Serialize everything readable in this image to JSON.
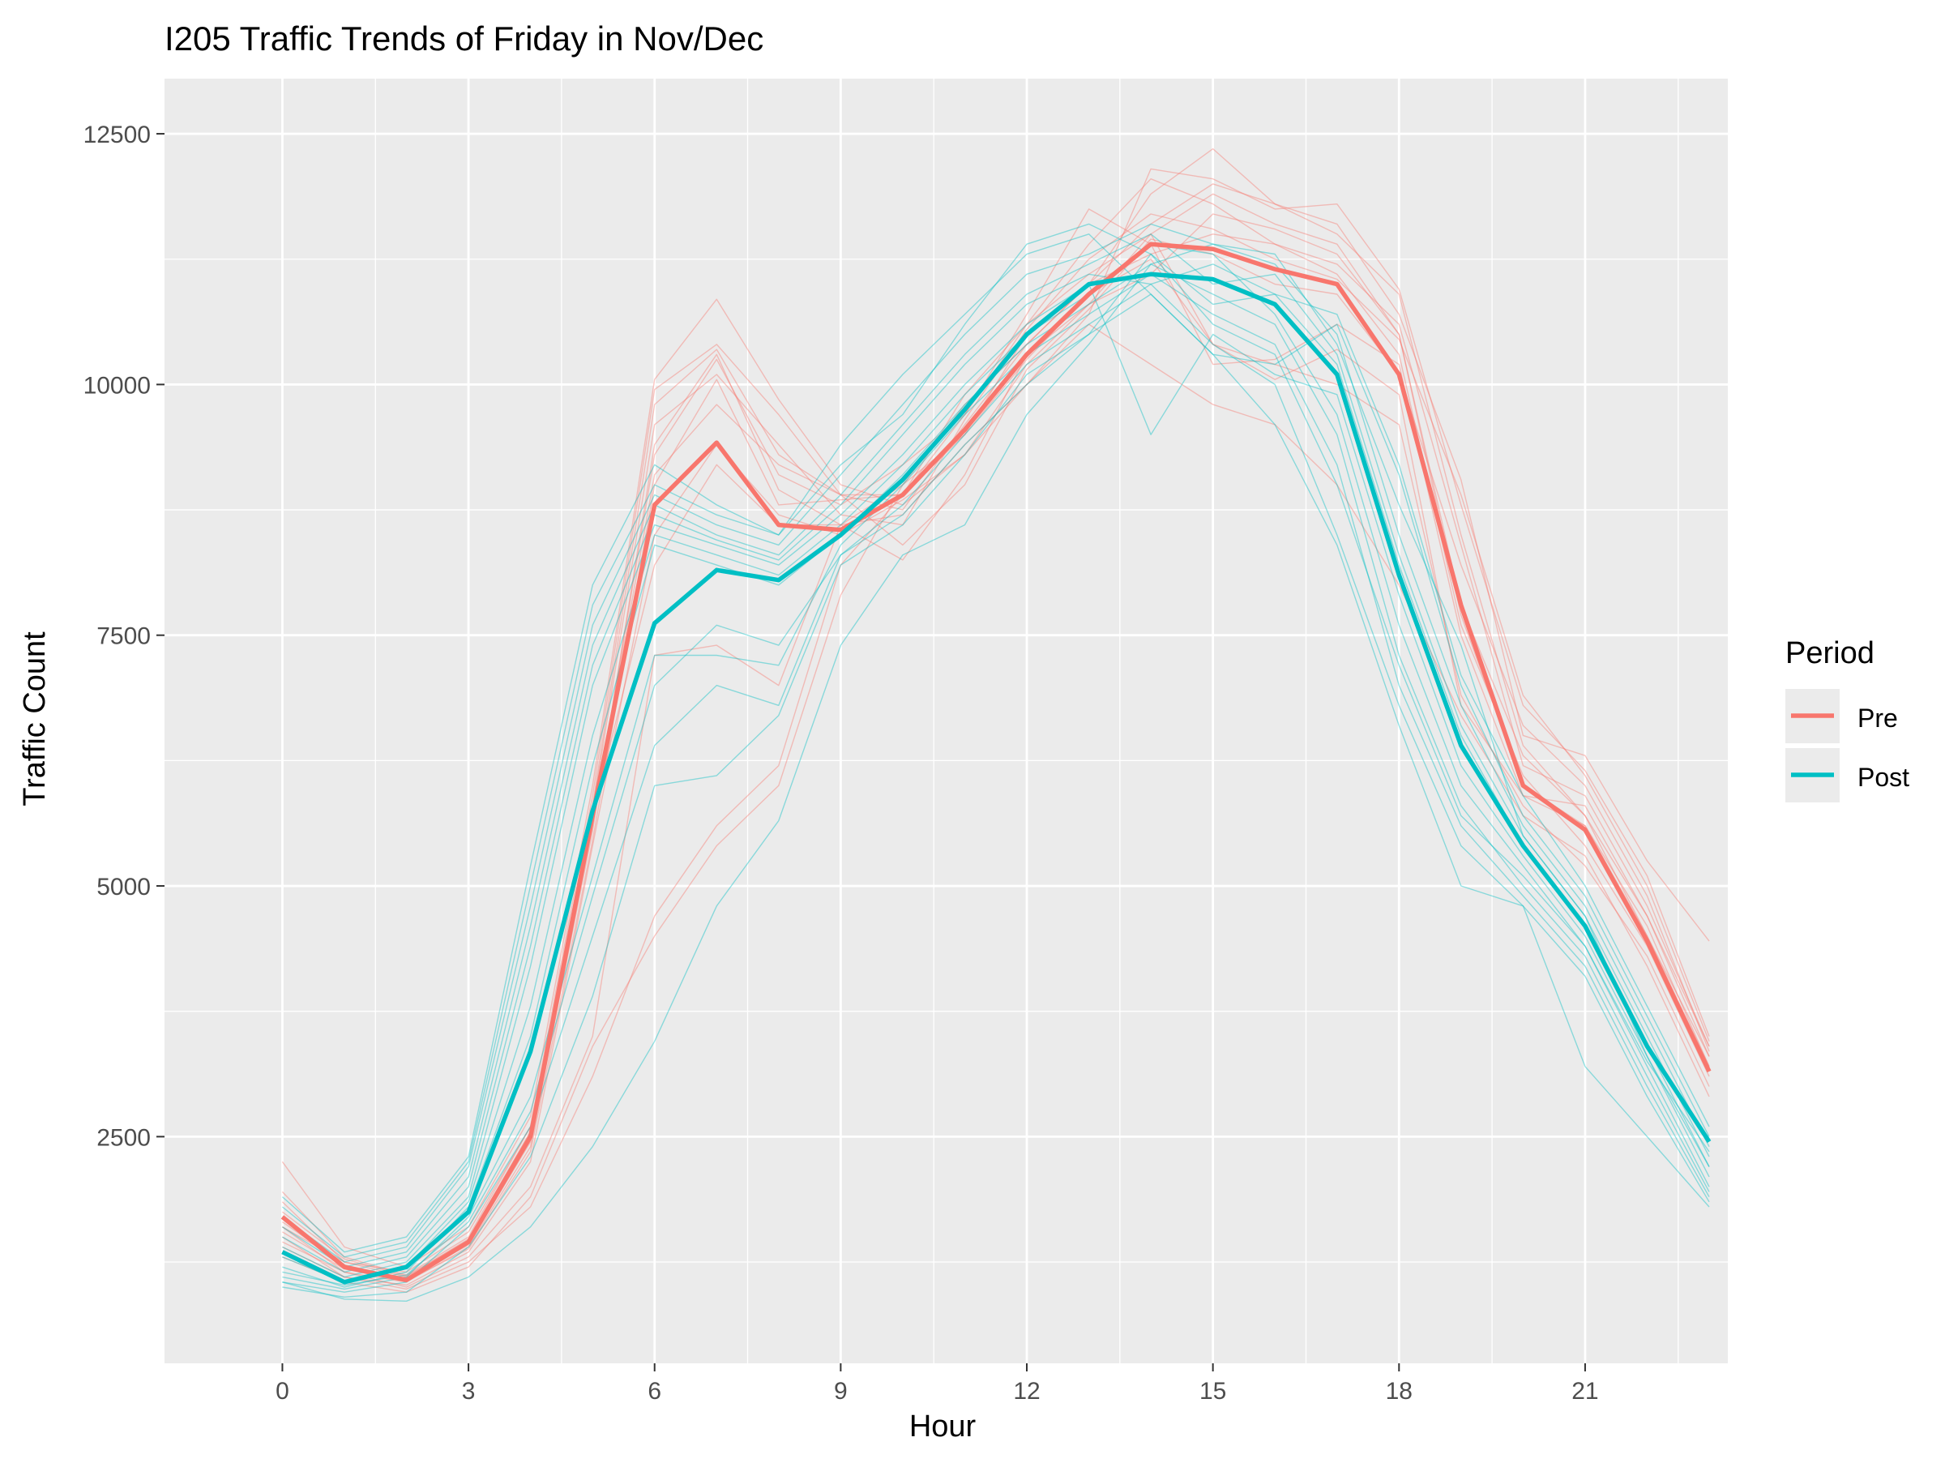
{
  "chart_data": {
    "type": "line",
    "title": "I205 Traffic Trends of Friday in Nov/Dec",
    "xlabel": "Hour",
    "ylabel": "Traffic Count",
    "xlim": [
      -1.9,
      23.3
    ],
    "ylim": [
      240,
      13050
    ],
    "x_ticks": [
      0,
      3,
      6,
      9,
      12,
      15,
      18,
      21
    ],
    "x_tick_labels": [
      "0",
      "3",
      "6",
      "9",
      "12",
      "15",
      "18",
      "21"
    ],
    "x_minor_ticks": [
      1.5,
      4.5,
      7.5,
      10.5,
      13.5,
      16.5,
      19.5,
      22.5
    ],
    "y_ticks": [
      2500,
      5000,
      7500,
      10000,
      12500
    ],
    "y_tick_labels": [
      "2500",
      "5000",
      "7500",
      "10000",
      "12500"
    ],
    "y_minor_ticks": [
      1250,
      3750,
      6250,
      8750,
      11250
    ],
    "grid": true,
    "legend": {
      "title": "Period",
      "position": "right",
      "entries": [
        {
          "label": "Pre",
          "color": "#F8766D"
        },
        {
          "label": "Post",
          "color": "#00BFC4"
        }
      ]
    },
    "colors": {
      "panel_background": "#EBEBEB",
      "grid": "#FFFFFF",
      "Pre": "#F8766D",
      "Post": "#00BFC4",
      "text": "#000000",
      "axis_text": "#4D4D4D"
    },
    "hours": [
      0,
      1,
      2,
      3,
      4,
      5,
      6,
      7,
      8,
      9,
      10,
      11,
      12,
      13,
      14,
      15,
      16,
      17,
      18,
      19,
      20,
      21,
      22,
      23
    ],
    "series": [
      {
        "name": "Pre",
        "values": [
          1700,
          1200,
          1070,
          1450,
          2500,
          5700,
          8800,
          9420,
          8600,
          8550,
          8900,
          9550,
          10300,
          10900,
          11400,
          11350,
          11150,
          11000,
          10100,
          7800,
          6000,
          5560,
          4450,
          3150
        ]
      },
      {
        "name": "Post",
        "values": [
          1350,
          1050,
          1200,
          1750,
          3350,
          5750,
          7620,
          8150,
          8050,
          8500,
          9050,
          9750,
          10500,
          11000,
          11100,
          11050,
          10800,
          10100,
          8100,
          6400,
          5400,
          4600,
          3400,
          2450
        ]
      }
    ],
    "individual_days": {
      "Pre": [
        [
          2250,
          1400,
          1200,
          1600,
          2700,
          6000,
          10050,
          10850,
          9850,
          9000,
          8800,
          9300,
          10000,
          10700,
          12150,
          12050,
          11750,
          11800,
          10950,
          8800,
          6800,
          6150,
          5100,
          3500
        ],
        [
          1950,
          1300,
          1120,
          1500,
          2600,
          5900,
          9950,
          10400,
          9700,
          8900,
          8750,
          9600,
          10400,
          11000,
          11900,
          12350,
          11800,
          11600,
          10700,
          9050,
          6500,
          6300,
          5250,
          4450
        ],
        [
          1850,
          1250,
          1100,
          1480,
          2550,
          5800,
          9800,
          10350,
          9300,
          8900,
          8900,
          9700,
          10600,
          11400,
          12050,
          11800,
          11400,
          11200,
          10600,
          8400,
          6200,
          5900,
          4800,
          3400
        ],
        [
          1600,
          1150,
          1050,
          1400,
          2400,
          5600,
          9300,
          10250,
          9100,
          8800,
          9200,
          9700,
          10700,
          11750,
          11400,
          10200,
          10250,
          10600,
          10200,
          7500,
          5900,
          5800,
          4700,
          3300
        ],
        [
          1700,
          1200,
          1090,
          1420,
          2450,
          5550,
          9400,
          10300,
          8950,
          8600,
          9000,
          9500,
          10250,
          10900,
          11250,
          10400,
          10050,
          10350,
          9900,
          6800,
          5900,
          5600,
          4600,
          3200
        ],
        [
          1550,
          1180,
          1060,
          1380,
          2350,
          5450,
          9000,
          10050,
          8800,
          8850,
          8900,
          9500,
          10500,
          11000,
          11300,
          11500,
          11400,
          11100,
          10300,
          7600,
          6100,
          5400,
          4400,
          3100
        ],
        [
          1500,
          1100,
          1020,
          1350,
          2250,
          5400,
          8500,
          9400,
          8700,
          8500,
          8850,
          9300,
          10200,
          10800,
          11500,
          10400,
          10200,
          10000,
          9600,
          6900,
          5800,
          5200,
          4300,
          3000
        ],
        [
          1650,
          1220,
          1080,
          1460,
          2500,
          5700,
          8200,
          9200,
          8600,
          8600,
          8700,
          9400,
          10000,
          10600,
          10200,
          9800,
          9600,
          9000,
          8000,
          6700,
          5700,
          5300,
          4200,
          2900
        ],
        [
          1450,
          1150,
          1000,
          1300,
          2000,
          3500,
          7300,
          7400,
          7000,
          8600,
          8250,
          9100,
          10300,
          10800,
          11100,
          11700,
          11550,
          11300,
          10500,
          7800,
          6300,
          5700,
          4500,
          3200
        ],
        [
          1400,
          1100,
          980,
          1250,
          1800,
          3100,
          4700,
          5600,
          6200,
          8200,
          8900,
          9900,
          10600,
          11100,
          11500,
          11900,
          11600,
          11400,
          10500,
          7700,
          6000,
          5600,
          4500,
          3300
        ],
        [
          1300,
          1050,
          950,
          1200,
          1900,
          3400,
          4500,
          5400,
          6000,
          7900,
          9000,
          9800,
          10400,
          11000,
          11600,
          12000,
          11800,
          11500,
          10900,
          8500,
          6400,
          5700,
          4700,
          3400
        ],
        [
          1600,
          1250,
          1150,
          1550,
          2600,
          5650,
          9100,
          9800,
          9200,
          8900,
          8400,
          9000,
          10150,
          10750,
          11450,
          11300,
          11000,
          10900,
          10100,
          8200,
          6600,
          6000,
          4900,
          3350
        ],
        [
          1750,
          1280,
          1110,
          1470,
          2550,
          5750,
          9600,
          10100,
          9400,
          8700,
          8600,
          9650,
          10550,
          11250,
          11700,
          11550,
          11250,
          11050,
          10450,
          8900,
          6900,
          6100,
          5000,
          3450
        ]
      ],
      "Post": [
        [
          1900,
          1350,
          1500,
          2300,
          5200,
          8000,
          9200,
          8800,
          8500,
          9200,
          9700,
          10600,
          11400,
          11600,
          11300,
          10800,
          10900,
          10700,
          9200,
          7100,
          5900,
          5000,
          3800,
          2600
        ],
        [
          1800,
          1300,
          1450,
          2250,
          5000,
          7800,
          9000,
          8700,
          8500,
          9400,
          10100,
          10700,
          11300,
          11500,
          10900,
          10300,
          10200,
          10600,
          9100,
          7000,
          5700,
          4900,
          3700,
          2500
        ],
        [
          1700,
          1250,
          1400,
          2200,
          4800,
          7600,
          8900,
          8600,
          8400,
          9100,
          9800,
          10500,
          11100,
          11300,
          11600,
          11400,
          11200,
          10500,
          8500,
          6800,
          5600,
          4800,
          3600,
          2400
        ],
        [
          1600,
          1200,
          1350,
          2100,
          4600,
          7400,
          8800,
          8500,
          8300,
          8900,
          9600,
          10300,
          10900,
          11200,
          11500,
          11000,
          11100,
          10300,
          8300,
          6600,
          5500,
          4700,
          3500,
          2300
        ],
        [
          1500,
          1150,
          1300,
          2000,
          4400,
          7200,
          8700,
          8450,
          8250,
          8800,
          9500,
          10200,
          10800,
          11100,
          11000,
          11200,
          10900,
          10200,
          8200,
          6500,
          5400,
          4600,
          3400,
          2200
        ],
        [
          1400,
          1100,
          1250,
          1900,
          4200,
          7000,
          8600,
          8400,
          8200,
          8700,
          9300,
          10000,
          10600,
          11000,
          9500,
          10500,
          10100,
          9900,
          7900,
          6200,
          5300,
          4500,
          3300,
          2100
        ],
        [
          1300,
          1050,
          1200,
          1850,
          3800,
          6500,
          8500,
          8300,
          8100,
          8600,
          9200,
          9900,
          10500,
          10900,
          11400,
          11300,
          10700,
          9700,
          7600,
          6000,
          5200,
          4400,
          3200,
          2000
        ],
        [
          1200,
          1000,
          1150,
          1800,
          3500,
          6200,
          8400,
          8200,
          8000,
          8500,
          9100,
          9800,
          10400,
          10800,
          11200,
          10900,
          10600,
          9500,
          7300,
          5800,
          5000,
          4300,
          3100,
          1950
        ],
        [
          1100,
          980,
          1100,
          1700,
          2900,
          5100,
          7300,
          7300,
          7200,
          8400,
          9000,
          9700,
          10300,
          10700,
          11100,
          10700,
          10400,
          9200,
          7000,
          5600,
          4900,
          4200,
          3000,
          1900
        ],
        [
          1050,
          950,
          1050,
          1600,
          2600,
          4500,
          6400,
          7000,
          6800,
          8300,
          8800,
          9500,
          10200,
          10600,
          11000,
          10400,
          10000,
          8500,
          6800,
          5400,
          4800,
          4100,
          2900,
          1850
        ],
        [
          1000,
          900,
          950,
          1400,
          2300,
          3900,
          6000,
          6100,
          6700,
          8200,
          8600,
          9300,
          10100,
          10500,
          10900,
          10300,
          9600,
          8400,
          6600,
          5000,
          4800,
          3200,
          2500,
          1800
        ],
        [
          1050,
          880,
          860,
          1100,
          1600,
          2400,
          3450,
          4800,
          5650,
          7400,
          8300,
          8600,
          9700,
          10400,
          11200,
          11400,
          11300,
          10400,
          8800,
          7400,
          5500,
          4700,
          3300,
          2200
        ],
        [
          1150,
          1020,
          1120,
          1650,
          2750,
          4900,
          7000,
          7600,
          7400,
          8300,
          8700,
          9400,
          10000,
          10500,
          11300,
          10600,
          10300,
          9000,
          7200,
          5700,
          5100,
          4400,
          3250,
          2350
        ]
      ]
    }
  }
}
